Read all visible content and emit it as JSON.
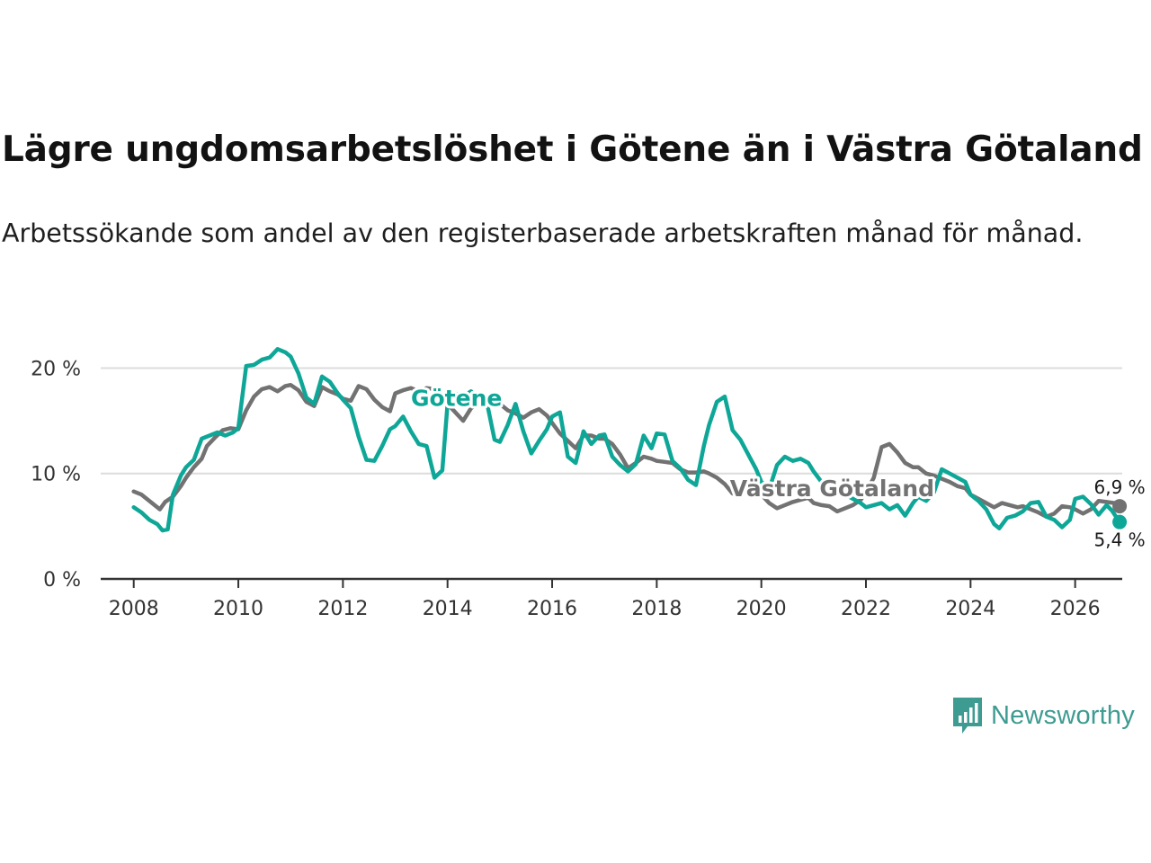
{
  "title": "Lägre ungdomsarbetslöshet i Götene än i Västra Götaland",
  "subtitle": "Arbetssökande som andel av den registerbaserade arbetskraften månad för månad.",
  "brand": {
    "name": "Newsworthy",
    "icon": "newsworthy-logo-icon",
    "color": "#3d9b91"
  },
  "chart_data": {
    "type": "line",
    "title": "Lägre ungdomsarbetslöshet i Götene än i Västra Götaland",
    "subtitle": "Arbetssökande som andel av den registerbaserade arbetskraften månad för månad.",
    "xlabel": "",
    "ylabel": "",
    "xlim": [
      2007.3,
      2026.9
    ],
    "ylim": [
      0,
      22
    ],
    "x_ticks": [
      2008,
      2010,
      2012,
      2014,
      2016,
      2018,
      2020,
      2022,
      2024,
      2026
    ],
    "x_tick_labels": [
      "2008",
      "2010",
      "2012",
      "2014",
      "2016",
      "2018",
      "2020",
      "2022",
      "2024",
      "2026"
    ],
    "y_ticks": [
      0,
      10,
      20
    ],
    "y_tick_labels": [
      "0 %",
      "10 %",
      "20 %"
    ],
    "grid": true,
    "series": [
      {
        "name": "Västra Götaland",
        "label": "Västra Götaland",
        "color": "#727272",
        "end_label": "6,9 %",
        "end_value": 6.9,
        "points": [
          [
            2008.0,
            8.3
          ],
          [
            2008.15,
            8.0
          ],
          [
            2008.35,
            7.2
          ],
          [
            2008.5,
            6.6
          ],
          [
            2008.6,
            7.3
          ],
          [
            2008.75,
            7.8
          ],
          [
            2008.9,
            8.8
          ],
          [
            2009.0,
            9.6
          ],
          [
            2009.15,
            10.6
          ],
          [
            2009.3,
            11.4
          ],
          [
            2009.4,
            12.6
          ],
          [
            2009.55,
            13.4
          ],
          [
            2009.7,
            14.1
          ],
          [
            2009.85,
            14.3
          ],
          [
            2010.0,
            14.2
          ],
          [
            2010.15,
            16.0
          ],
          [
            2010.3,
            17.3
          ],
          [
            2010.45,
            18.0
          ],
          [
            2010.6,
            18.2
          ],
          [
            2010.75,
            17.8
          ],
          [
            2010.9,
            18.3
          ],
          [
            2011.0,
            18.4
          ],
          [
            2011.15,
            17.9
          ],
          [
            2011.3,
            16.8
          ],
          [
            2011.45,
            16.4
          ],
          [
            2011.6,
            18.2
          ],
          [
            2011.75,
            17.8
          ],
          [
            2011.9,
            17.5
          ],
          [
            2012.0,
            17.1
          ],
          [
            2012.15,
            16.9
          ],
          [
            2012.3,
            18.3
          ],
          [
            2012.45,
            18.0
          ],
          [
            2012.6,
            17.0
          ],
          [
            2012.75,
            16.3
          ],
          [
            2012.9,
            15.9
          ],
          [
            2013.0,
            17.6
          ],
          [
            2013.15,
            17.9
          ],
          [
            2013.3,
            18.1
          ],
          [
            2013.45,
            17.8
          ],
          [
            2013.6,
            18.1
          ],
          [
            2013.75,
            18.0
          ],
          [
            2013.9,
            17.0
          ],
          [
            2014.0,
            16.6
          ],
          [
            2014.15,
            15.8
          ],
          [
            2014.3,
            15.0
          ],
          [
            2014.45,
            16.2
          ],
          [
            2014.6,
            16.7
          ],
          [
            2014.75,
            16.8
          ],
          [
            2014.9,
            16.5
          ],
          [
            2015.0,
            16.6
          ],
          [
            2015.15,
            16.0
          ],
          [
            2015.3,
            15.7
          ],
          [
            2015.45,
            15.3
          ],
          [
            2015.6,
            15.8
          ],
          [
            2015.75,
            16.1
          ],
          [
            2015.9,
            15.5
          ],
          [
            2016.0,
            14.8
          ],
          [
            2016.15,
            13.8
          ],
          [
            2016.3,
            13.1
          ],
          [
            2016.45,
            12.4
          ],
          [
            2016.6,
            13.6
          ],
          [
            2016.75,
            13.6
          ],
          [
            2016.9,
            13.3
          ],
          [
            2017.0,
            13.3
          ],
          [
            2017.15,
            12.8
          ],
          [
            2017.3,
            11.8
          ],
          [
            2017.45,
            10.5
          ],
          [
            2017.6,
            11.0
          ],
          [
            2017.75,
            11.6
          ],
          [
            2017.9,
            11.4
          ],
          [
            2018.0,
            11.2
          ],
          [
            2018.15,
            11.1
          ],
          [
            2018.3,
            11.0
          ],
          [
            2018.45,
            10.4
          ],
          [
            2018.6,
            10.1
          ],
          [
            2018.75,
            10.1
          ],
          [
            2018.9,
            10.2
          ],
          [
            2019.0,
            10.0
          ],
          [
            2019.15,
            9.6
          ],
          [
            2019.3,
            9.0
          ],
          [
            2019.45,
            8.1
          ],
          [
            2019.6,
            8.3
          ],
          [
            2019.75,
            8.4
          ],
          [
            2019.9,
            8.2
          ],
          [
            2020.0,
            8.0
          ],
          [
            2020.15,
            7.2
          ],
          [
            2020.3,
            6.7
          ],
          [
            2020.45,
            7.0
          ],
          [
            2020.6,
            7.3
          ],
          [
            2020.75,
            7.5
          ],
          [
            2020.9,
            7.7
          ],
          [
            2021.0,
            7.2
          ],
          [
            2021.15,
            7.0
          ],
          [
            2021.3,
            6.9
          ],
          [
            2021.45,
            6.4
          ],
          [
            2021.6,
            6.7
          ],
          [
            2021.75,
            7.0
          ],
          [
            2021.9,
            7.5
          ],
          [
            2022.0,
            8.2
          ],
          [
            2022.15,
            9.6
          ],
          [
            2022.3,
            12.5
          ],
          [
            2022.45,
            12.8
          ],
          [
            2022.6,
            12.0
          ],
          [
            2022.75,
            11.0
          ],
          [
            2022.9,
            10.6
          ],
          [
            2023.0,
            10.6
          ],
          [
            2023.15,
            10.0
          ],
          [
            2023.3,
            9.8
          ],
          [
            2023.45,
            9.5
          ],
          [
            2023.6,
            9.2
          ],
          [
            2023.75,
            8.8
          ],
          [
            2023.9,
            8.6
          ],
          [
            2024.0,
            8.0
          ],
          [
            2024.15,
            7.6
          ],
          [
            2024.3,
            7.2
          ],
          [
            2024.45,
            6.8
          ],
          [
            2024.6,
            7.2
          ],
          [
            2024.75,
            7.0
          ],
          [
            2024.9,
            6.8
          ],
          [
            2025.0,
            6.9
          ],
          [
            2025.15,
            6.6
          ],
          [
            2025.3,
            6.3
          ],
          [
            2025.45,
            5.9
          ],
          [
            2025.6,
            6.2
          ],
          [
            2025.75,
            6.9
          ],
          [
            2025.9,
            6.8
          ],
          [
            2026.0,
            6.6
          ],
          [
            2026.15,
            6.2
          ],
          [
            2026.3,
            6.6
          ],
          [
            2026.45,
            7.4
          ],
          [
            2026.6,
            7.3
          ],
          [
            2026.75,
            7.2
          ],
          [
            2026.85,
            6.9
          ]
        ]
      },
      {
        "name": "Götene",
        "label": "Götene",
        "color": "#0ea797",
        "end_label": "5,4 %",
        "end_value": 5.4,
        "points": [
          [
            2008.0,
            6.8
          ],
          [
            2008.15,
            6.3
          ],
          [
            2008.3,
            5.6
          ],
          [
            2008.45,
            5.2
          ],
          [
            2008.55,
            4.6
          ],
          [
            2008.65,
            4.7
          ],
          [
            2008.75,
            8.0
          ],
          [
            2008.9,
            9.8
          ],
          [
            2009.0,
            10.6
          ],
          [
            2009.15,
            11.3
          ],
          [
            2009.3,
            13.3
          ],
          [
            2009.45,
            13.6
          ],
          [
            2009.6,
            13.9
          ],
          [
            2009.75,
            13.6
          ],
          [
            2009.9,
            13.9
          ],
          [
            2010.0,
            14.3
          ],
          [
            2010.15,
            20.2
          ],
          [
            2010.3,
            20.3
          ],
          [
            2010.45,
            20.8
          ],
          [
            2010.6,
            21.0
          ],
          [
            2010.75,
            21.8
          ],
          [
            2010.9,
            21.5
          ],
          [
            2011.0,
            21.1
          ],
          [
            2011.15,
            19.5
          ],
          [
            2011.3,
            17.2
          ],
          [
            2011.45,
            16.6
          ],
          [
            2011.6,
            19.2
          ],
          [
            2011.75,
            18.7
          ],
          [
            2011.9,
            17.6
          ],
          [
            2012.0,
            17.0
          ],
          [
            2012.15,
            16.2
          ],
          [
            2012.3,
            13.5
          ],
          [
            2012.45,
            11.3
          ],
          [
            2012.6,
            11.2
          ],
          [
            2012.75,
            12.6
          ],
          [
            2012.9,
            14.2
          ],
          [
            2013.0,
            14.5
          ],
          [
            2013.15,
            15.4
          ],
          [
            2013.3,
            14.0
          ],
          [
            2013.45,
            12.8
          ],
          [
            2013.6,
            12.6
          ],
          [
            2013.75,
            9.6
          ],
          [
            2013.9,
            10.3
          ],
          [
            2014.0,
            16.6
          ],
          [
            2014.15,
            17.6
          ],
          [
            2014.3,
            17.3
          ],
          [
            2014.45,
            17.8
          ],
          [
            2014.6,
            16.6
          ],
          [
            2014.75,
            16.8
          ],
          [
            2014.9,
            13.2
          ],
          [
            2015.0,
            13.0
          ],
          [
            2015.15,
            14.6
          ],
          [
            2015.3,
            16.6
          ],
          [
            2015.45,
            14.0
          ],
          [
            2015.6,
            11.9
          ],
          [
            2015.75,
            13.1
          ],
          [
            2015.9,
            14.2
          ],
          [
            2016.0,
            15.4
          ],
          [
            2016.15,
            15.8
          ],
          [
            2016.3,
            11.6
          ],
          [
            2016.45,
            11.0
          ],
          [
            2016.6,
            14.0
          ],
          [
            2016.75,
            12.8
          ],
          [
            2016.9,
            13.6
          ],
          [
            2017.0,
            13.7
          ],
          [
            2017.15,
            11.6
          ],
          [
            2017.3,
            10.8
          ],
          [
            2017.45,
            10.2
          ],
          [
            2017.6,
            10.9
          ],
          [
            2017.75,
            13.6
          ],
          [
            2017.9,
            12.4
          ],
          [
            2018.0,
            13.8
          ],
          [
            2018.15,
            13.7
          ],
          [
            2018.3,
            11.2
          ],
          [
            2018.45,
            10.5
          ],
          [
            2018.6,
            9.4
          ],
          [
            2018.75,
            8.9
          ],
          [
            2018.9,
            12.6
          ],
          [
            2019.0,
            14.6
          ],
          [
            2019.15,
            16.8
          ],
          [
            2019.3,
            17.3
          ],
          [
            2019.45,
            14.1
          ],
          [
            2019.6,
            13.2
          ],
          [
            2019.75,
            11.8
          ],
          [
            2019.9,
            10.4
          ],
          [
            2020.0,
            9.2
          ],
          [
            2020.15,
            8.5
          ],
          [
            2020.3,
            10.8
          ],
          [
            2020.45,
            11.6
          ],
          [
            2020.6,
            11.2
          ],
          [
            2020.75,
            11.4
          ],
          [
            2020.9,
            11.0
          ],
          [
            2021.0,
            10.2
          ],
          [
            2021.15,
            9.2
          ],
          [
            2021.3,
            8.5
          ],
          [
            2021.45,
            8.2
          ],
          [
            2021.6,
            8.0
          ],
          [
            2021.75,
            7.6
          ],
          [
            2021.9,
            7.2
          ],
          [
            2022.0,
            6.8
          ],
          [
            2022.15,
            7.0
          ],
          [
            2022.3,
            7.2
          ],
          [
            2022.45,
            6.6
          ],
          [
            2022.6,
            7.0
          ],
          [
            2022.75,
            6.0
          ],
          [
            2022.9,
            7.2
          ],
          [
            2023.0,
            7.8
          ],
          [
            2023.15,
            7.4
          ],
          [
            2023.3,
            8.2
          ],
          [
            2023.45,
            10.4
          ],
          [
            2023.6,
            10.0
          ],
          [
            2023.75,
            9.6
          ],
          [
            2023.9,
            9.2
          ],
          [
            2024.0,
            8.0
          ],
          [
            2024.15,
            7.4
          ],
          [
            2024.3,
            6.6
          ],
          [
            2024.45,
            5.2
          ],
          [
            2024.55,
            4.8
          ],
          [
            2024.7,
            5.8
          ],
          [
            2024.85,
            6.0
          ],
          [
            2025.0,
            6.4
          ],
          [
            2025.15,
            7.2
          ],
          [
            2025.3,
            7.3
          ],
          [
            2025.45,
            5.9
          ],
          [
            2025.6,
            5.6
          ],
          [
            2025.75,
            4.9
          ],
          [
            2025.9,
            5.6
          ],
          [
            2026.0,
            7.6
          ],
          [
            2026.15,
            7.8
          ],
          [
            2026.3,
            7.1
          ],
          [
            2026.45,
            6.1
          ],
          [
            2026.6,
            7.0
          ],
          [
            2026.7,
            6.5
          ],
          [
            2026.85,
            5.4
          ]
        ]
      }
    ]
  }
}
